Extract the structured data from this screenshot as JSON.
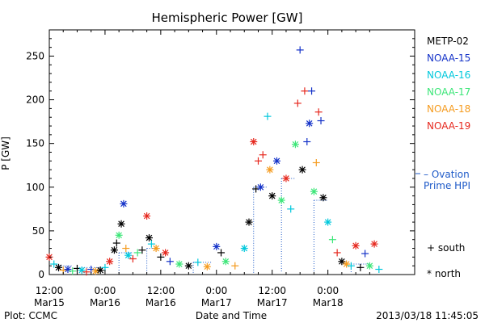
{
  "chart_data": {
    "type": "scatter",
    "title": "Hemispheric Power [GW]",
    "xlabel": "Date and Time",
    "ylabel": "P [GW]",
    "xlim": [
      "2013-03-15 12:00",
      "2013-03-18 12:00"
    ],
    "ylim": [
      0,
      280
    ],
    "x_tick_labels": [
      {
        "time": "12:00",
        "date": "Mar15"
      },
      {
        "time": "0:00",
        "date": "Mar16"
      },
      {
        "time": "12:00",
        "date": "Mar16"
      },
      {
        "time": "0:00",
        "date": "Mar17"
      },
      {
        "time": "12:00",
        "date": "Mar17"
      },
      {
        "time": "0:00",
        "date": "Mar18"
      }
    ],
    "y_ticks": [
      0,
      50,
      100,
      150,
      200,
      250
    ],
    "legend": {
      "placement": "right",
      "series": [
        {
          "name": "METP-02",
          "color": "#000000"
        },
        {
          "name": "NOAA-15",
          "color": "#1432c8"
        },
        {
          "name": "NOAA-16",
          "color": "#00c8dc"
        },
        {
          "name": "NOAA-17",
          "color": "#3ce678"
        },
        {
          "name": "NOAA-18",
          "color": "#f59b1e"
        },
        {
          "name": "NOAA-19",
          "color": "#e6281e"
        }
      ],
      "marker_south": "+ south",
      "marker_north": "* north"
    },
    "ovation": {
      "label_line1": "– Ovation",
      "label_line2": "Prime HPI",
      "color": "#1e5ac8"
    },
    "points": [
      {
        "t": "2013-03-15 12:00",
        "p": 20,
        "s": "NOAA-19",
        "m": "north"
      },
      {
        "t": "2013-03-15 13:00",
        "p": 12,
        "s": "NOAA-16",
        "m": "south"
      },
      {
        "t": "2013-03-15 14:00",
        "p": 8,
        "s": "METP-02",
        "m": "north"
      },
      {
        "t": "2013-03-15 15:00",
        "p": 5,
        "s": "NOAA-18",
        "m": "south"
      },
      {
        "t": "2013-03-15 16:00",
        "p": 6,
        "s": "NOAA-15",
        "m": "north"
      },
      {
        "t": "2013-03-15 17:00",
        "p": 4,
        "s": "NOAA-17",
        "m": "south"
      },
      {
        "t": "2013-03-15 18:00",
        "p": 7,
        "s": "METP-02",
        "m": "south"
      },
      {
        "t": "2013-03-15 19:00",
        "p": 5,
        "s": "NOAA-16",
        "m": "north"
      },
      {
        "t": "2013-03-15 20:00",
        "p": 3,
        "s": "NOAA-19",
        "m": "south"
      },
      {
        "t": "2013-03-15 21:00",
        "p": 6,
        "s": "NOAA-15",
        "m": "south"
      },
      {
        "t": "2013-03-15 22:00",
        "p": 4,
        "s": "NOAA-18",
        "m": "north"
      },
      {
        "t": "2013-03-15 23:00",
        "p": 5,
        "s": "METP-02",
        "m": "north"
      },
      {
        "t": "2013-03-16 00:00",
        "p": 8,
        "s": "NOAA-16",
        "m": "south"
      },
      {
        "t": "2013-03-16 01:00",
        "p": 15,
        "s": "NOAA-19",
        "m": "north"
      },
      {
        "t": "2013-03-16 02:00",
        "p": 28,
        "s": "METP-02",
        "m": "north"
      },
      {
        "t": "2013-03-16 02:30",
        "p": 36,
        "s": "METP-02",
        "m": "south"
      },
      {
        "t": "2013-03-16 03:00",
        "p": 45,
        "s": "NOAA-17",
        "m": "north"
      },
      {
        "t": "2013-03-16 03:30",
        "p": 58,
        "s": "METP-02",
        "m": "north"
      },
      {
        "t": "2013-03-16 04:00",
        "p": 81,
        "s": "NOAA-15",
        "m": "north"
      },
      {
        "t": "2013-03-16 04:30",
        "p": 30,
        "s": "NOAA-18",
        "m": "south"
      },
      {
        "t": "2013-03-16 05:00",
        "p": 22,
        "s": "NOAA-16",
        "m": "north"
      },
      {
        "t": "2013-03-16 06:00",
        "p": 18,
        "s": "NOAA-19",
        "m": "south"
      },
      {
        "t": "2013-03-16 07:00",
        "p": 25,
        "s": "NOAA-17",
        "m": "south"
      },
      {
        "t": "2013-03-16 08:00",
        "p": 28,
        "s": "METP-02",
        "m": "south"
      },
      {
        "t": "2013-03-16 09:00",
        "p": 67,
        "s": "NOAA-19",
        "m": "north"
      },
      {
        "t": "2013-03-16 09:30",
        "p": 42,
        "s": "METP-02",
        "m": "north"
      },
      {
        "t": "2013-03-16 10:00",
        "p": 35,
        "s": "NOAA-16",
        "m": "south"
      },
      {
        "t": "2013-03-16 11:00",
        "p": 30,
        "s": "NOAA-18",
        "m": "north"
      },
      {
        "t": "2013-03-16 12:00",
        "p": 20,
        "s": "METP-02",
        "m": "south"
      },
      {
        "t": "2013-03-16 13:00",
        "p": 25,
        "s": "NOAA-19",
        "m": "north"
      },
      {
        "t": "2013-03-16 14:00",
        "p": 15,
        "s": "NOAA-15",
        "m": "south"
      },
      {
        "t": "2013-03-16 16:00",
        "p": 12,
        "s": "NOAA-17",
        "m": "north"
      },
      {
        "t": "2013-03-16 18:00",
        "p": 10,
        "s": "METP-02",
        "m": "north"
      },
      {
        "t": "2013-03-16 20:00",
        "p": 14,
        "s": "NOAA-16",
        "m": "south"
      },
      {
        "t": "2013-03-16 22:00",
        "p": 9,
        "s": "NOAA-18",
        "m": "north"
      },
      {
        "t": "2013-03-17 00:00",
        "p": 32,
        "s": "NOAA-15",
        "m": "north"
      },
      {
        "t": "2013-03-17 01:00",
        "p": 25,
        "s": "METP-02",
        "m": "south"
      },
      {
        "t": "2013-03-17 02:00",
        "p": 15,
        "s": "NOAA-17",
        "m": "north"
      },
      {
        "t": "2013-03-17 04:00",
        "p": 10,
        "s": "NOAA-18",
        "m": "south"
      },
      {
        "t": "2013-03-17 06:00",
        "p": 30,
        "s": "NOAA-16",
        "m": "north"
      },
      {
        "t": "2013-03-17 07:00",
        "p": 60,
        "s": "METP-02",
        "m": "north"
      },
      {
        "t": "2013-03-17 08:00",
        "p": 152,
        "s": "NOAA-19",
        "m": "north"
      },
      {
        "t": "2013-03-17 08:30",
        "p": 98,
        "s": "METP-02",
        "m": "south"
      },
      {
        "t": "2013-03-17 09:00",
        "p": 130,
        "s": "NOAA-19",
        "m": "south"
      },
      {
        "t": "2013-03-17 09:30",
        "p": 100,
        "s": "NOAA-15",
        "m": "north"
      },
      {
        "t": "2013-03-17 10:00",
        "p": 137,
        "s": "NOAA-19",
        "m": "south"
      },
      {
        "t": "2013-03-17 11:00",
        "p": 181,
        "s": "NOAA-16",
        "m": "south"
      },
      {
        "t": "2013-03-17 11:30",
        "p": 120,
        "s": "NOAA-18",
        "m": "north"
      },
      {
        "t": "2013-03-17 12:00",
        "p": 90,
        "s": "METP-02",
        "m": "north"
      },
      {
        "t": "2013-03-17 13:00",
        "p": 130,
        "s": "NOAA-15",
        "m": "north"
      },
      {
        "t": "2013-03-17 14:00",
        "p": 85,
        "s": "NOAA-17",
        "m": "north"
      },
      {
        "t": "2013-03-17 15:00",
        "p": 110,
        "s": "NOAA-19",
        "m": "north"
      },
      {
        "t": "2013-03-17 16:00",
        "p": 75,
        "s": "NOAA-16",
        "m": "south"
      },
      {
        "t": "2013-03-17 17:00",
        "p": 149,
        "s": "NOAA-17",
        "m": "north"
      },
      {
        "t": "2013-03-17 17:30",
        "p": 196,
        "s": "NOAA-19",
        "m": "south"
      },
      {
        "t": "2013-03-17 18:00",
        "p": 257,
        "s": "NOAA-15",
        "m": "south"
      },
      {
        "t": "2013-03-17 18:30",
        "p": 120,
        "s": "METP-02",
        "m": "north"
      },
      {
        "t": "2013-03-17 19:00",
        "p": 210,
        "s": "NOAA-19",
        "m": "south"
      },
      {
        "t": "2013-03-17 19:30",
        "p": 152,
        "s": "NOAA-15",
        "m": "south"
      },
      {
        "t": "2013-03-17 20:00",
        "p": 173,
        "s": "NOAA-15",
        "m": "north"
      },
      {
        "t": "2013-03-17 20:30",
        "p": 210,
        "s": "NOAA-15",
        "m": "south"
      },
      {
        "t": "2013-03-17 21:00",
        "p": 95,
        "s": "NOAA-17",
        "m": "north"
      },
      {
        "t": "2013-03-17 21:30",
        "p": 128,
        "s": "NOAA-18",
        "m": "south"
      },
      {
        "t": "2013-03-17 22:00",
        "p": 186,
        "s": "NOAA-19",
        "m": "south"
      },
      {
        "t": "2013-03-17 22:30",
        "p": 176,
        "s": "NOAA-15",
        "m": "south"
      },
      {
        "t": "2013-03-17 23:00",
        "p": 88,
        "s": "METP-02",
        "m": "north"
      },
      {
        "t": "2013-03-18 00:00",
        "p": 60,
        "s": "NOAA-16",
        "m": "north"
      },
      {
        "t": "2013-03-18 01:00",
        "p": 40,
        "s": "NOAA-17",
        "m": "south"
      },
      {
        "t": "2013-03-18 02:00",
        "p": 25,
        "s": "NOAA-19",
        "m": "south"
      },
      {
        "t": "2013-03-18 03:00",
        "p": 15,
        "s": "METP-02",
        "m": "north"
      },
      {
        "t": "2013-03-18 04:00",
        "p": 12,
        "s": "NOAA-18",
        "m": "north"
      },
      {
        "t": "2013-03-18 05:00",
        "p": 10,
        "s": "NOAA-16",
        "m": "south"
      },
      {
        "t": "2013-03-18 06:00",
        "p": 33,
        "s": "NOAA-19",
        "m": "north"
      },
      {
        "t": "2013-03-18 07:00",
        "p": 8,
        "s": "METP-02",
        "m": "south"
      },
      {
        "t": "2013-03-18 08:00",
        "p": 24,
        "s": "NOAA-15",
        "m": "south"
      },
      {
        "t": "2013-03-18 09:00",
        "p": 10,
        "s": "NOAA-17",
        "m": "north"
      },
      {
        "t": "2013-03-18 10:00",
        "p": 35,
        "s": "NOAA-19",
        "m": "north"
      },
      {
        "t": "2013-03-18 11:00",
        "p": 6,
        "s": "NOAA-16",
        "m": "south"
      }
    ],
    "hpi_segments": [
      {
        "t0": "2013-03-15 14:00",
        "t1": "2013-03-15 17:00",
        "p": 10
      },
      {
        "t0": "2013-03-15 19:00",
        "t1": "2013-03-15 23:00",
        "p": 8
      },
      {
        "t0": "2013-03-16 03:00",
        "t1": "2013-03-16 06:00",
        "p": 25
      },
      {
        "t0": "2013-03-16 09:00",
        "t1": "2013-03-16 12:00",
        "p": 30
      },
      {
        "t0": "2013-03-16 19:00",
        "t1": "2013-03-16 23:00",
        "p": 14
      },
      {
        "t0": "2013-03-17 08:00",
        "t1": "2013-03-17 11:00",
        "p": 100
      },
      {
        "t0": "2013-03-17 14:00",
        "t1": "2013-03-17 17:00",
        "p": 110
      },
      {
        "t0": "2013-03-17 21:00",
        "t1": "2013-03-18 00:00",
        "p": 85
      },
      {
        "t0": "2013-03-18 05:00",
        "t1": "2013-03-18 09:00",
        "p": 12
      }
    ]
  },
  "footer": {
    "left": "Plot: CCMC",
    "center": "Date and Time",
    "right": "2013/03/18 11:45:05"
  }
}
